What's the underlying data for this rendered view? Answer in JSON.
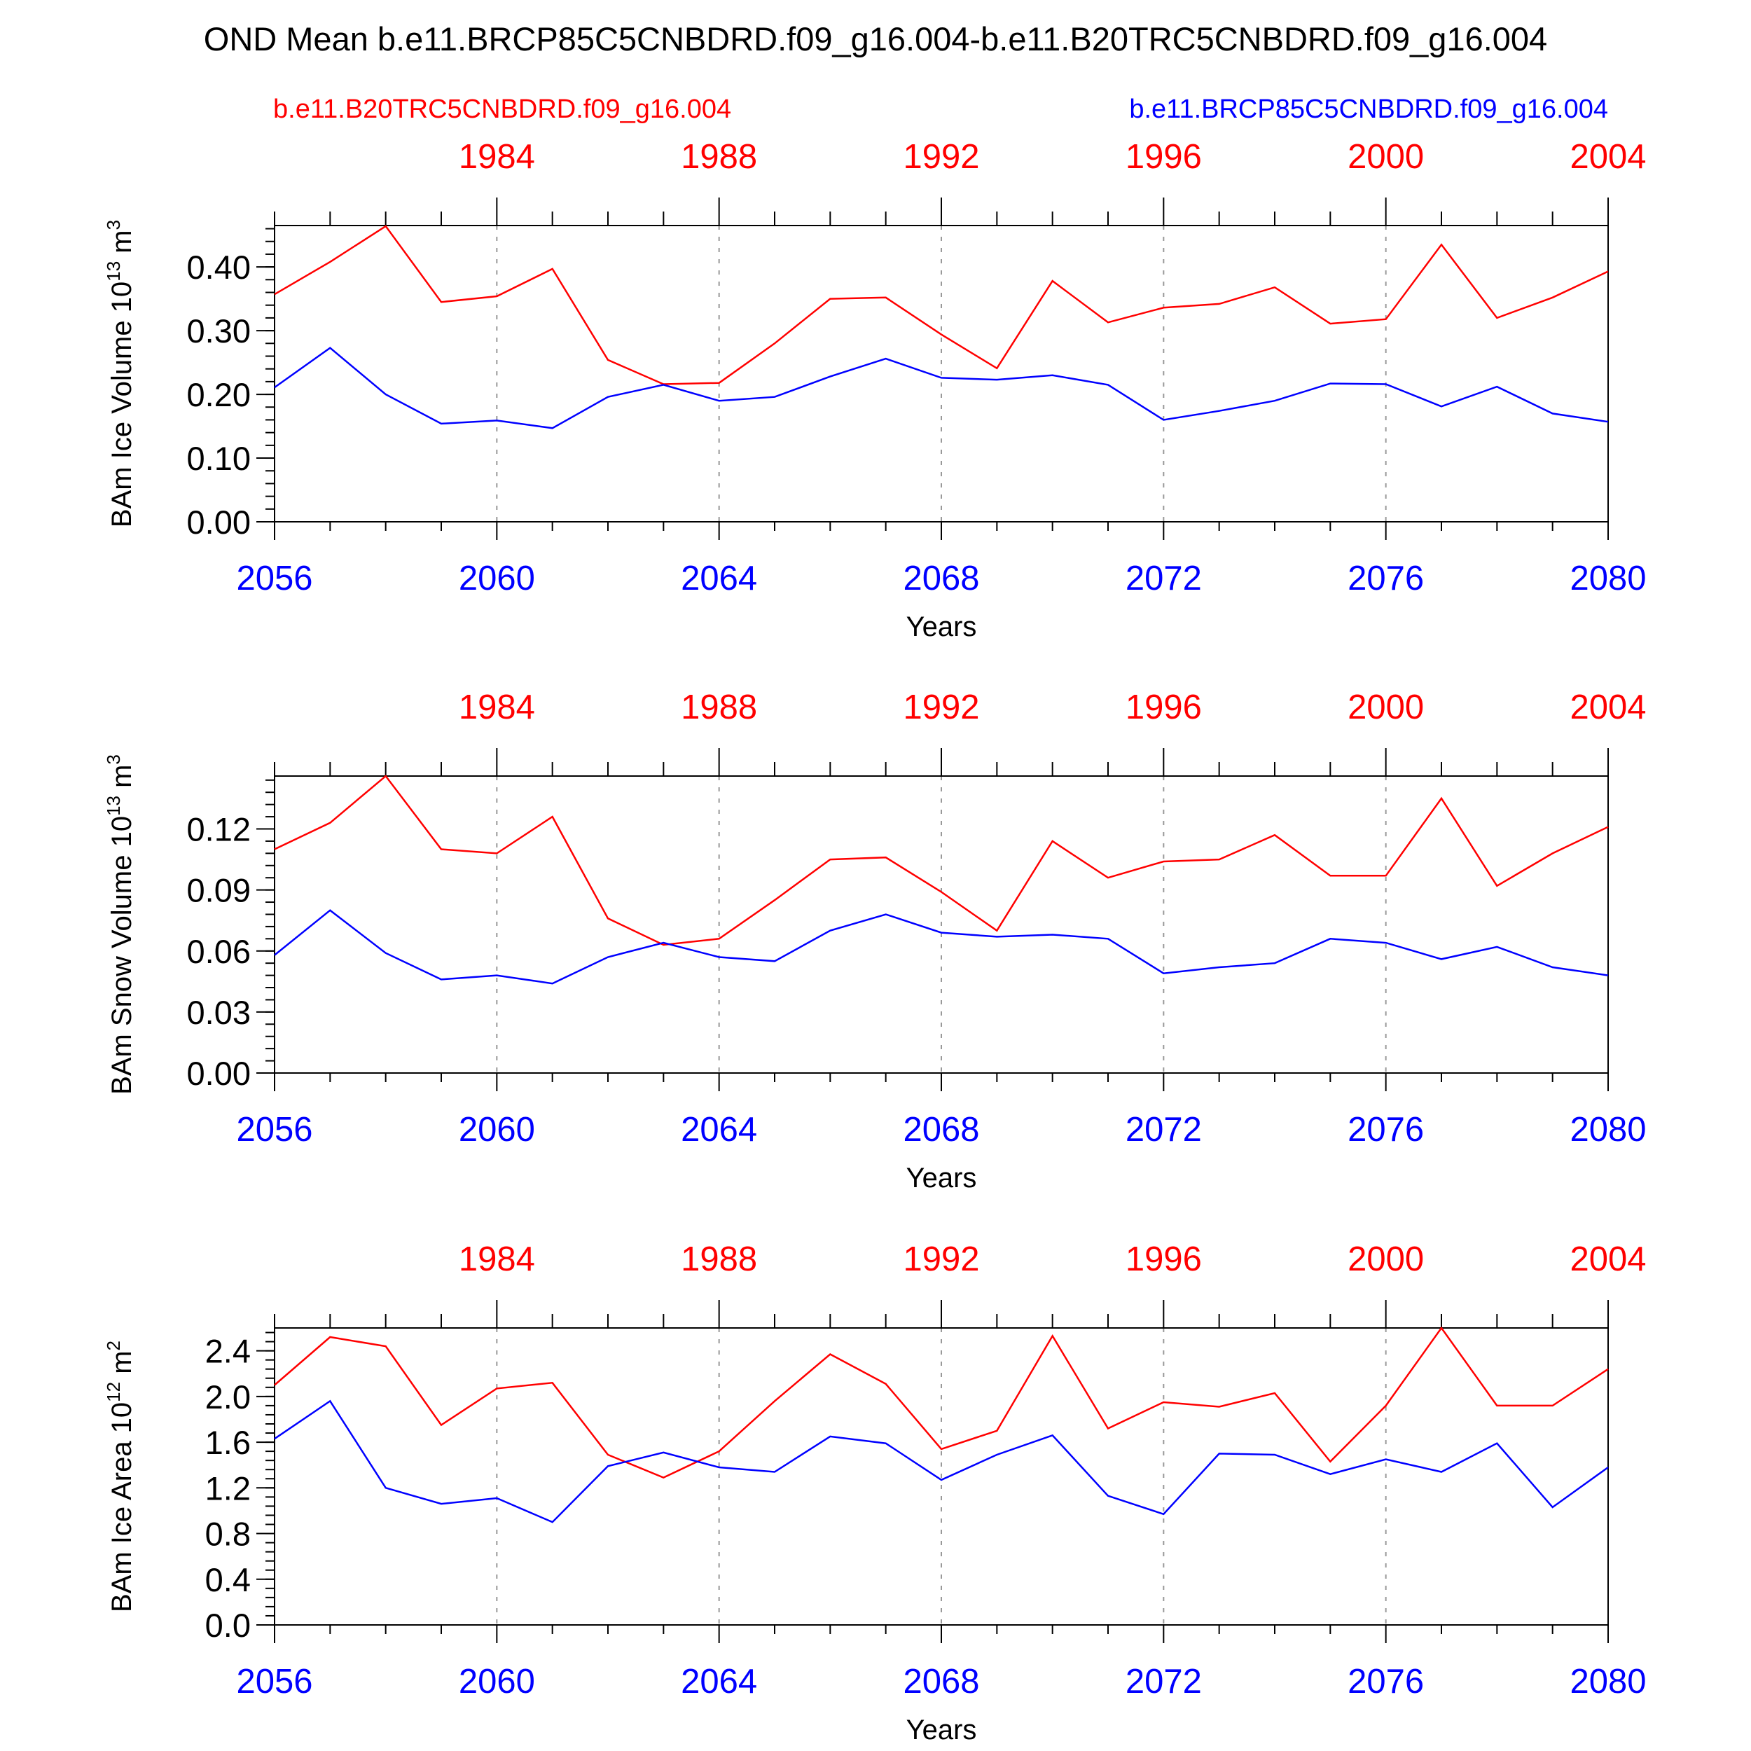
{
  "figure": {
    "title": "OND Mean b.e11.BRCP85C5CNBDRD.f09_g16.004-b.e11.B20TRC5CNBDRD.f09_g16.004",
    "legend_left": "b.e11.B20TRC5CNBDRD.f09_g16.004",
    "legend_right": "b.e11.BRCP85C5CNBDRD.f09_g16.004",
    "colors": {
      "historical": "#ff0000",
      "future": "#0000ff",
      "axis": "#000000",
      "grid": "#999999"
    }
  },
  "chart_data": [
    {
      "type": "line",
      "ylabel_main": "BAm Ice Volume 10",
      "ylabel_exp": "13",
      "ylabel_unit": " m",
      "ylabel_unit_exp": "3",
      "xlabel": "Years",
      "xlim": [
        2056,
        2080
      ],
      "ylim": [
        0,
        0.465
      ],
      "yticks": [
        0.0,
        0.1,
        0.2,
        0.3,
        0.4
      ],
      "ytick_labels": [
        "0.00",
        "0.10",
        "0.20",
        "0.30",
        "0.40"
      ],
      "yminor_step": 0.02,
      "xticks": [
        2056,
        2060,
        2064,
        2068,
        2072,
        2076,
        2080
      ],
      "xtick_labels": [
        "2056",
        "2060",
        "2064",
        "2068",
        "2072",
        "2076",
        "2080"
      ],
      "top_ticks": [
        1984,
        1988,
        1992,
        1996,
        2000,
        2004
      ],
      "top_tick_labels": [
        "1984",
        "1988",
        "1992",
        "1996",
        "2000",
        "2004"
      ],
      "x": [
        2056,
        2057,
        2058,
        2059,
        2060,
        2061,
        2062,
        2063,
        2064,
        2065,
        2066,
        2067,
        2068,
        2069,
        2070,
        2071,
        2072,
        2073,
        2074,
        2075,
        2076,
        2077,
        2078,
        2079,
        2080
      ],
      "series": [
        {
          "name": "b.e11.B20TRC5CNBDRD.f09_g16.004",
          "color": "#ff0000",
          "values": [
            0.357,
            0.408,
            0.464,
            0.345,
            0.354,
            0.397,
            0.254,
            0.216,
            0.218,
            0.28,
            0.35,
            0.352,
            0.294,
            0.241,
            0.378,
            0.313,
            0.336,
            0.342,
            0.368,
            0.311,
            0.318,
            0.435,
            0.32,
            0.352,
            0.393
          ]
        },
        {
          "name": "b.e11.BRCP85C5CNBDRD.f09_g16.004",
          "color": "#0000ff",
          "values": [
            0.211,
            0.273,
            0.2,
            0.154,
            0.159,
            0.147,
            0.196,
            0.215,
            0.19,
            0.196,
            0.228,
            0.256,
            0.226,
            0.223,
            0.23,
            0.215,
            0.16,
            0.174,
            0.19,
            0.217,
            0.216,
            0.181,
            0.212,
            0.17,
            0.157
          ]
        }
      ]
    },
    {
      "type": "line",
      "ylabel_main": "BAm Snow Volume 10",
      "ylabel_exp": "13",
      "ylabel_unit": " m",
      "ylabel_unit_exp": "3",
      "xlabel": "Years",
      "xlim": [
        2056,
        2080
      ],
      "ylim": [
        0,
        0.146
      ],
      "yticks": [
        0.0,
        0.03,
        0.06,
        0.09,
        0.12
      ],
      "ytick_labels": [
        "0.00",
        "0.03",
        "0.06",
        "0.09",
        "0.12"
      ],
      "yminor_step": 0.006,
      "xticks": [
        2056,
        2060,
        2064,
        2068,
        2072,
        2076,
        2080
      ],
      "xtick_labels": [
        "2056",
        "2060",
        "2064",
        "2068",
        "2072",
        "2076",
        "2080"
      ],
      "top_ticks": [
        1984,
        1988,
        1992,
        1996,
        2000,
        2004
      ],
      "top_tick_labels": [
        "1984",
        "1988",
        "1992",
        "1996",
        "2000",
        "2004"
      ],
      "x": [
        2056,
        2057,
        2058,
        2059,
        2060,
        2061,
        2062,
        2063,
        2064,
        2065,
        2066,
        2067,
        2068,
        2069,
        2070,
        2071,
        2072,
        2073,
        2074,
        2075,
        2076,
        2077,
        2078,
        2079,
        2080
      ],
      "series": [
        {
          "name": "b.e11.B20TRC5CNBDRD.f09_g16.004",
          "color": "#ff0000",
          "values": [
            0.11,
            0.123,
            0.146,
            0.11,
            0.108,
            0.126,
            0.076,
            0.063,
            0.066,
            0.085,
            0.105,
            0.106,
            0.089,
            0.07,
            0.114,
            0.096,
            0.104,
            0.105,
            0.117,
            0.097,
            0.097,
            0.135,
            0.092,
            0.108,
            0.121
          ]
        },
        {
          "name": "b.e11.BRCP85C5CNBDRD.f09_g16.004",
          "color": "#0000ff",
          "values": [
            0.058,
            0.08,
            0.059,
            0.046,
            0.048,
            0.044,
            0.057,
            0.064,
            0.057,
            0.055,
            0.07,
            0.078,
            0.069,
            0.067,
            0.068,
            0.066,
            0.049,
            0.052,
            0.054,
            0.066,
            0.064,
            0.056,
            0.062,
            0.052,
            0.048
          ]
        }
      ]
    },
    {
      "type": "line",
      "ylabel_main": "BAm Ice Area 10",
      "ylabel_exp": "12",
      "ylabel_unit": " m",
      "ylabel_unit_exp": "2",
      "xlabel": "Years",
      "xlim": [
        2056,
        2080
      ],
      "ylim": [
        0,
        2.6
      ],
      "yticks": [
        0.0,
        0.4,
        0.8,
        1.2,
        1.6,
        2.0,
        2.4
      ],
      "ytick_labels": [
        "0.0",
        "0.4",
        "0.8",
        "1.2",
        "1.6",
        "2.0",
        "2.4"
      ],
      "yminor_step": 0.08,
      "xticks": [
        2056,
        2060,
        2064,
        2068,
        2072,
        2076,
        2080
      ],
      "xtick_labels": [
        "2056",
        "2060",
        "2064",
        "2068",
        "2072",
        "2076",
        "2080"
      ],
      "top_ticks": [
        1984,
        1988,
        1992,
        1996,
        2000,
        2004
      ],
      "top_tick_labels": [
        "1984",
        "1988",
        "1992",
        "1996",
        "2000",
        "2004"
      ],
      "x": [
        2056,
        2057,
        2058,
        2059,
        2060,
        2061,
        2062,
        2063,
        2064,
        2065,
        2066,
        2067,
        2068,
        2069,
        2070,
        2071,
        2072,
        2073,
        2074,
        2075,
        2076,
        2077,
        2078,
        2079,
        2080
      ],
      "series": [
        {
          "name": "b.e11.B20TRC5CNBDRD.f09_g16.004",
          "color": "#ff0000",
          "values": [
            2.1,
            2.52,
            2.44,
            1.75,
            2.07,
            2.12,
            1.49,
            1.29,
            1.52,
            1.96,
            2.37,
            2.11,
            1.54,
            1.7,
            2.53,
            1.72,
            1.95,
            1.91,
            2.03,
            1.43,
            1.92,
            2.6,
            1.92,
            1.92,
            2.24
          ]
        },
        {
          "name": "b.e11.BRCP85C5CNBDRD.f09_g16.004",
          "color": "#0000ff",
          "values": [
            1.63,
            1.96,
            1.2,
            1.06,
            1.11,
            0.9,
            1.39,
            1.51,
            1.38,
            1.34,
            1.65,
            1.59,
            1.27,
            1.49,
            1.66,
            1.13,
            0.97,
            1.5,
            1.49,
            1.32,
            1.45,
            1.34,
            1.59,
            1.03,
            1.38
          ]
        }
      ]
    }
  ]
}
